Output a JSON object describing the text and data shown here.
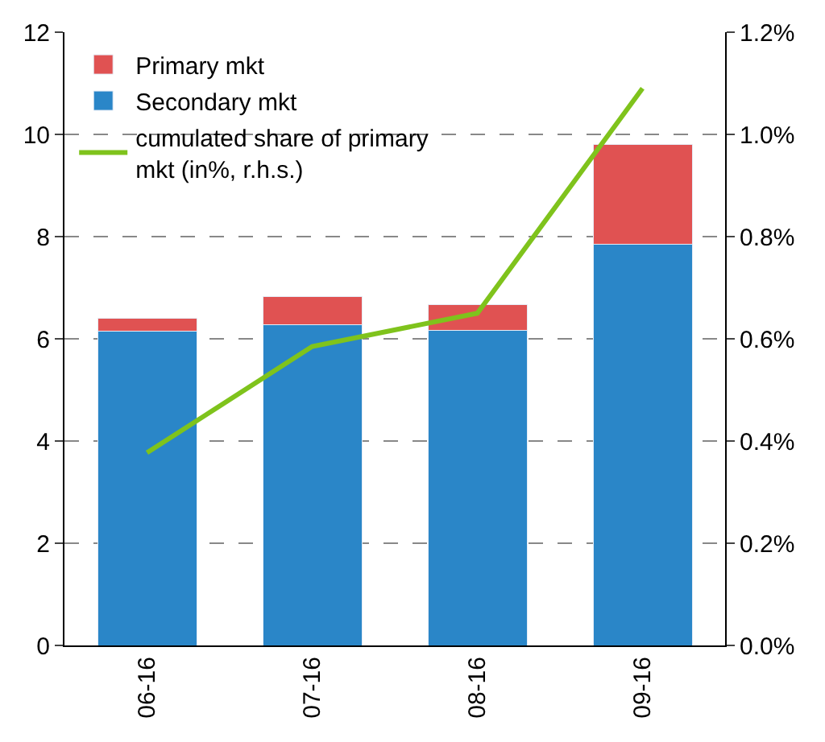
{
  "chart_data": {
    "type": "bar",
    "stacked": true,
    "categories": [
      "06-16",
      "07-16",
      "08-16",
      "09-16"
    ],
    "series": [
      {
        "name": "Secondary mkt",
        "color": "#2a86c8",
        "values": [
          6.15,
          6.27,
          6.17,
          7.85
        ]
      },
      {
        "name": "Primary mkt",
        "color": "#e05252",
        "values": [
          0.25,
          0.55,
          0.5,
          1.95
        ]
      },
      {
        "name": "cumulated share of primary mkt (in%, r.h.s.)",
        "color": "#7fc31c",
        "type": "line",
        "axis": "y2",
        "values": [
          0.377,
          0.585,
          0.65,
          1.09
        ]
      }
    ],
    "ylim": [
      0,
      12
    ],
    "yticks": [
      0,
      2,
      4,
      6,
      8,
      10,
      12
    ],
    "y2lim": [
      0,
      1.2
    ],
    "y2ticks": [
      {
        "value": 0,
        "label": "0.0%"
      },
      {
        "value": 0.2,
        "label": "0.2%"
      },
      {
        "value": 0.4,
        "label": "0.4%"
      },
      {
        "value": 0.6,
        "label": "0.6%"
      },
      {
        "value": 0.8,
        "label": "0.8%"
      },
      {
        "value": 1.0,
        "label": "1.0%"
      },
      {
        "value": 1.2,
        "label": "1.2%"
      }
    ],
    "grid": "y",
    "legend": "top left",
    "line_style": "solid",
    "marker": "none"
  }
}
